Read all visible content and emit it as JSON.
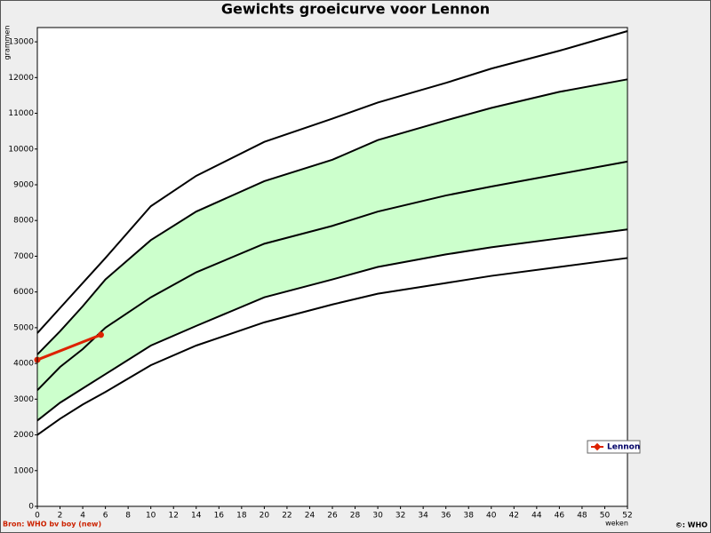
{
  "chart_data": {
    "type": "line",
    "title": "Gewichts groeicurve voor Lennon",
    "ylabel": "grammen",
    "xlabel": "weken",
    "source": "Bron: WHO bv boy (new)",
    "copyright": "©: WHO",
    "x": [
      0,
      2,
      4,
      6,
      10,
      14,
      20,
      26,
      30,
      36,
      40,
      46,
      52
    ],
    "series": [
      {
        "color": "#000000",
        "values": [
          4850,
          5550,
          6250,
          6950,
          8400,
          9250,
          10200,
          10850,
          11300,
          11850,
          12250,
          12750,
          13300
        ]
      },
      {
        "color": "#000000",
        "values": [
          4250,
          4900,
          5600,
          6350,
          7450,
          8250,
          9100,
          9700,
          10250,
          10800,
          11150,
          11600,
          11950
        ]
      },
      {
        "color": "#000000",
        "values": [
          3250,
          3900,
          4400,
          5000,
          5850,
          6550,
          7350,
          7850,
          8250,
          8700,
          8950,
          9300,
          9650
        ]
      },
      {
        "color": "#000000",
        "values": [
          2400,
          2900,
          3300,
          3700,
          4500,
          5050,
          5850,
          6350,
          6700,
          7050,
          7250,
          7500,
          7750
        ]
      },
      {
        "color": "#000000",
        "values": [
          2000,
          2450,
          2850,
          3200,
          3950,
          4500,
          5150,
          5650,
          5950,
          6250,
          6450,
          6700,
          6950
        ]
      },
      {
        "name": "Lennon",
        "color": "#dd2200",
        "x": [
          0,
          5.6
        ],
        "values": [
          4100,
          4800
        ]
      }
    ],
    "band": {
      "color": "#ccffcc",
      "series": [
        1,
        3
      ]
    },
    "xlim": [
      0,
      52
    ],
    "xticks": [
      0,
      2,
      4,
      6,
      8,
      10,
      12,
      14,
      16,
      18,
      20,
      22,
      24,
      26,
      28,
      30,
      32,
      34,
      36,
      38,
      40,
      42,
      44,
      46,
      48,
      50,
      52
    ],
    "ylim": [
      0,
      13400
    ],
    "yticks": [
      0,
      1000,
      2000,
      3000,
      4000,
      5000,
      6000,
      7000,
      8000,
      9000,
      10000,
      11000,
      12000,
      13000
    ],
    "legend": "lower right"
  }
}
